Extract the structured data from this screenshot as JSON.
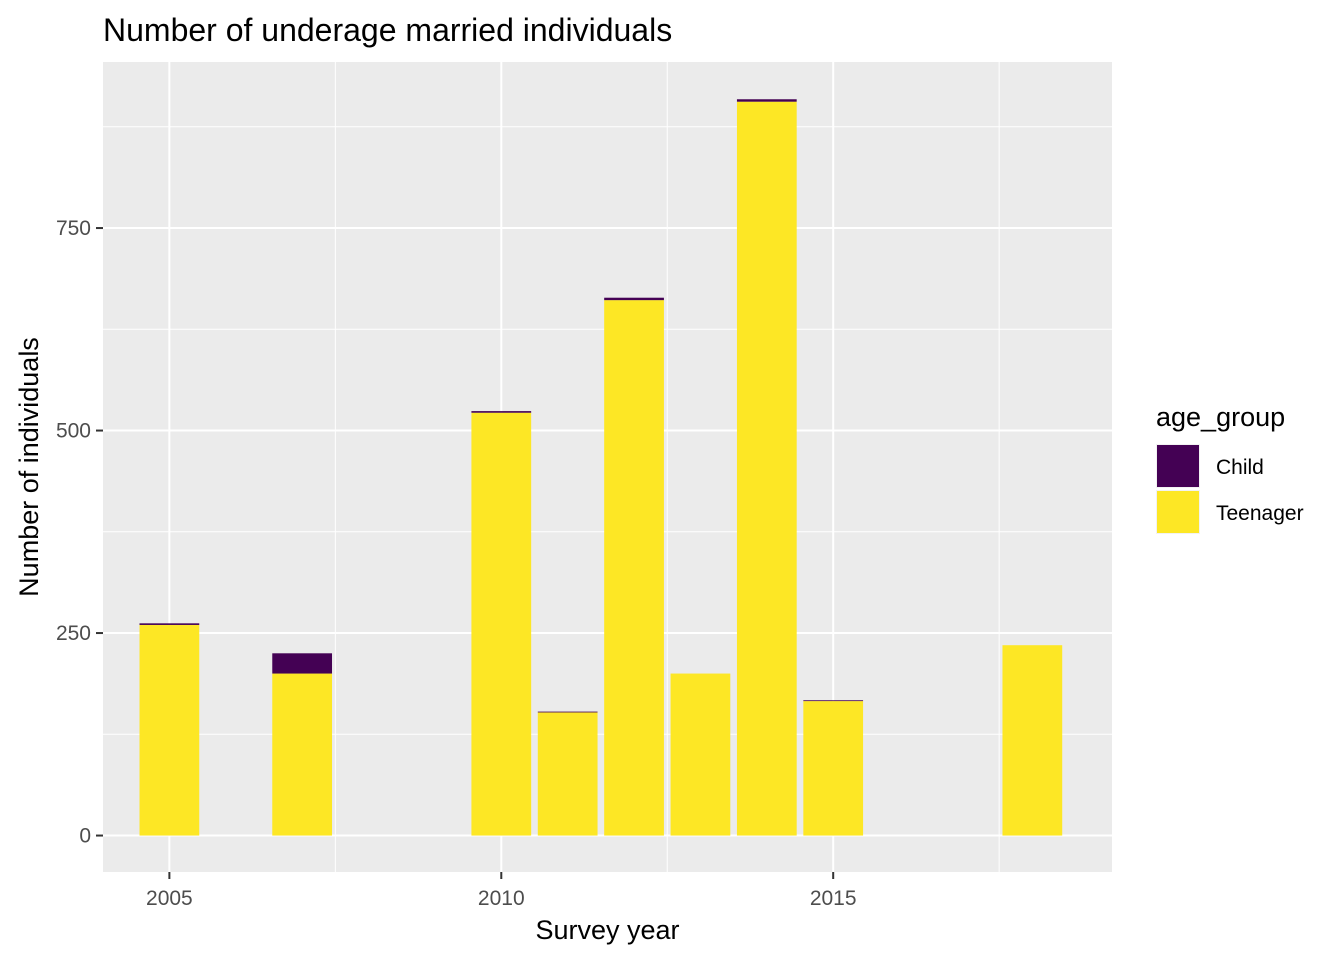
{
  "chart_data": {
    "type": "bar",
    "stacked": true,
    "title": "Number of underage married individuals",
    "xlabel": "Survey year",
    "ylabel": "Number of individuals",
    "x": [
      2005,
      2007,
      2010,
      2011,
      2012,
      2013,
      2014,
      2015,
      2018
    ],
    "series": [
      {
        "name": "Child",
        "color": "#440154",
        "values": [
          2,
          25,
          2,
          1,
          3,
          0,
          3,
          1,
          0
        ]
      },
      {
        "name": "Teenager",
        "color": "#FDE725",
        "values": [
          260,
          200,
          522,
          152,
          661,
          200,
          906,
          166,
          235
        ]
      }
    ],
    "xlim": [
      2004,
      2019.2
    ],
    "ylim": [
      -45,
      955
    ],
    "xticks": [
      2005,
      2010,
      2015
    ],
    "xticks_minor": [
      2007.5,
      2012.5,
      2017.5
    ],
    "yticks": [
      0,
      250,
      500,
      750
    ],
    "yticks_minor": [
      125,
      375,
      625,
      875
    ],
    "grid": true,
    "legend": {
      "title": "age_group",
      "position": "right",
      "entries": [
        "Child",
        "Teenager"
      ]
    },
    "panel_background": "#EBEBEB",
    "gridline_color": "#FFFFFF"
  }
}
